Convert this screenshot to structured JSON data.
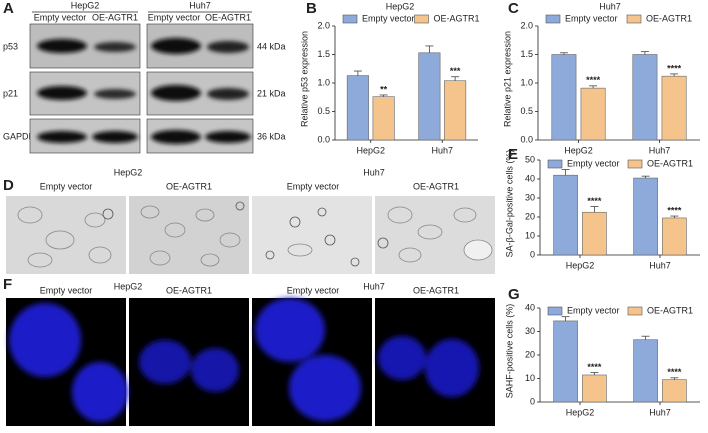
{
  "panel_a": {
    "letter": "A",
    "groups": [
      "HepG2",
      "Huh7"
    ],
    "columns": [
      "Empty vector",
      "OE-AGTR1",
      "Empty vector",
      "OE-AGTR1"
    ],
    "rows": [
      {
        "protein": "p53",
        "size": "44 kDa"
      },
      {
        "protein": "p21",
        "size": "21 kDa"
      },
      {
        "protein": "GAPDH",
        "size": "36 kDa"
      }
    ]
  },
  "panel_d": {
    "letter": "D",
    "groups": [
      "HepG2",
      "Huh7"
    ],
    "columns": [
      "Empty vector",
      "OE-AGTR1",
      "Empty vector",
      "OE-AGTR1"
    ]
  },
  "panel_f": {
    "letter": "F",
    "groups": [
      "HepG2",
      "Huh7"
    ],
    "columns": [
      "Empty vector",
      "OE-AGTR1",
      "Empty vector",
      "OE-AGTR1"
    ]
  },
  "chart_data": [
    {
      "type": "bar",
      "panel": "B",
      "title": "HepG2",
      "ylabel": "Relative p53 expression",
      "categories": [
        "HepG2",
        "Huh7"
      ],
      "legend": "top",
      "ylim": [
        0,
        2
      ],
      "yticks": [
        {
          "value": 0,
          "label": "0.0"
        },
        0.5,
        {
          "value": 1,
          "label": "1.0"
        },
        1.5,
        {
          "value": 2,
          "label": "2.0"
        }
      ],
      "series": [
        {
          "name": "Empty vector",
          "color": "#8eaadb",
          "values": [
            1.13,
            1.53
          ],
          "errors": [
            0.08,
            0.12
          ]
        },
        {
          "name": "OE-AGTR1",
          "color": "#f4c48c",
          "values": [
            0.76,
            1.04
          ],
          "errors": [
            0.03,
            0.07
          ],
          "significance": [
            "**",
            "***"
          ]
        }
      ]
    },
    {
      "type": "bar",
      "panel": "C",
      "title": "Huh7",
      "ylabel": "Relative p21 expression",
      "categories": [
        "HepG2",
        "Huh7"
      ],
      "legend": "top",
      "ylim": [
        0,
        2
      ],
      "yticks": [
        {
          "value": 0,
          "label": "0.0"
        },
        0.5,
        {
          "value": 1,
          "label": "1.0"
        },
        1.5,
        {
          "value": 2,
          "label": "2.0"
        }
      ],
      "series": [
        {
          "name": "Empty vector",
          "color": "#8eaadb",
          "values": [
            1.5,
            1.5
          ],
          "errors": [
            0.03,
            0.05
          ]
        },
        {
          "name": "OE-AGTR1",
          "color": "#f4c48c",
          "values": [
            0.91,
            1.12
          ],
          "errors": [
            0.04,
            0.04
          ],
          "significance": [
            "****",
            "****"
          ]
        }
      ]
    },
    {
      "type": "bar",
      "panel": "E",
      "ylabel": "SA-β-Gal-positive cells (%)",
      "categories": [
        "HepG2",
        "Huh7"
      ],
      "legend": "top",
      "ylim": [
        0,
        50
      ],
      "yticks": [
        0,
        10,
        20,
        30,
        40,
        50
      ],
      "series": [
        {
          "name": "Empty vector",
          "color": "#8eaadb",
          "values": [
            42,
            40.5
          ],
          "errors": [
            3,
            1
          ]
        },
        {
          "name": "OE-AGTR1",
          "color": "#f4c48c",
          "values": [
            22.5,
            19.5
          ],
          "errors": [
            3,
            1
          ],
          "significance": [
            "****",
            "****"
          ]
        }
      ]
    },
    {
      "type": "bar",
      "panel": "G",
      "ylabel": "SAHF-positive cells (%)",
      "categories": [
        "HepG2",
        "Huh7"
      ],
      "legend": "top",
      "ylim": [
        0,
        40
      ],
      "yticks": [
        0,
        10,
        20,
        30,
        40
      ],
      "series": [
        {
          "name": "Empty vector",
          "color": "#8eaadb",
          "values": [
            34.5,
            26.5
          ],
          "errors": [
            1.8,
            1.5
          ]
        },
        {
          "name": "OE-AGTR1",
          "color": "#f4c48c",
          "values": [
            11.5,
            9.5
          ],
          "errors": [
            1,
            0.8
          ],
          "significance": [
            "****",
            "****"
          ]
        }
      ]
    }
  ]
}
